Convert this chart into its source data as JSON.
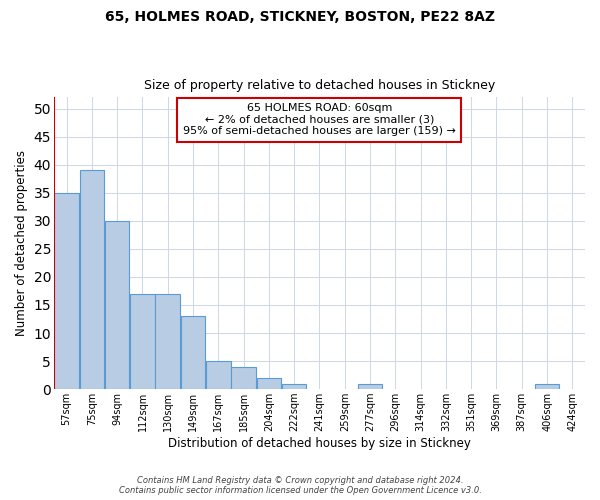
{
  "title": "65, HOLMES ROAD, STICKNEY, BOSTON, PE22 8AZ",
  "subtitle": "Size of property relative to detached houses in Stickney",
  "xlabel": "Distribution of detached houses by size in Stickney",
  "ylabel": "Number of detached properties",
  "bins": [
    "57sqm",
    "75sqm",
    "94sqm",
    "112sqm",
    "130sqm",
    "149sqm",
    "167sqm",
    "185sqm",
    "204sqm",
    "222sqm",
    "241sqm",
    "259sqm",
    "277sqm",
    "296sqm",
    "314sqm",
    "332sqm",
    "351sqm",
    "369sqm",
    "387sqm",
    "406sqm",
    "424sqm"
  ],
  "counts": [
    35,
    39,
    30,
    17,
    17,
    13,
    5,
    4,
    2,
    1,
    0,
    0,
    1,
    0,
    0,
    0,
    0,
    0,
    0,
    1,
    0
  ],
  "bar_color": "#b8cce4",
  "bar_edge_color": "#5b9bd5",
  "annotation_box_edge_color": "#cc0000",
  "annotation_text_line1": "65 HOLMES ROAD: 60sqm",
  "annotation_text_line2": "← 2% of detached houses are smaller (3)",
  "annotation_text_line3": "95% of semi-detached houses are larger (159) →",
  "red_vline_x": 0,
  "ylim": [
    0,
    52
  ],
  "yticks": [
    0,
    5,
    10,
    15,
    20,
    25,
    30,
    35,
    40,
    45,
    50
  ],
  "footer_line1": "Contains HM Land Registry data © Crown copyright and database right 2024.",
  "footer_line2": "Contains public sector information licensed under the Open Government Licence v3.0.",
  "bg_color": "#ffffff",
  "grid_color": "#ccd6e8",
  "title_fontsize": 10,
  "subtitle_fontsize": 9,
  "ylabel_fontsize": 8.5,
  "xlabel_fontsize": 8.5,
  "tick_fontsize": 7,
  "annot_fontsize": 8,
  "footer_fontsize": 6
}
